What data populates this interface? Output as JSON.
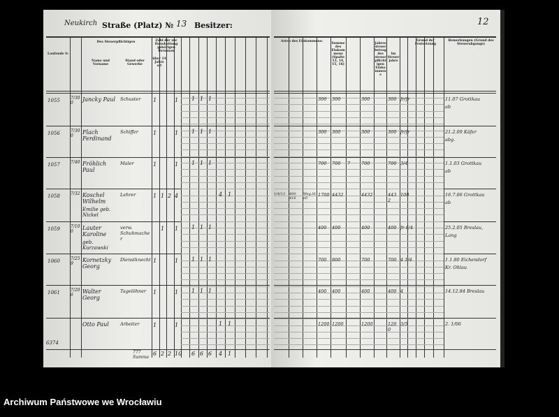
{
  "header": {
    "place": "Neukirch",
    "street_label": "Straße (Platz) №",
    "street_no": "13",
    "owner_label": "Besitzer:",
    "page_number": "12"
  },
  "columns_left": {
    "group_taxpayer": "Des Steuerpflichtigen",
    "name": "Name und Vorname",
    "stand": "Stand oder Gewerbe",
    "nr": "Laufende №",
    "household": "Zahl der zur Haushaltung gehörigen Personen",
    "over14": "über 14 Jahre alt"
  },
  "columns_right": {
    "income_types": "Arten des Einkommens:",
    "sum": "Summe des Einkommens (Spalte 13, 14, 15, 16)",
    "annual_tax": "Jahressteuerbetrag des steuerpflichtigen Einkommens",
    "tax_year": "Im Steuerjahre",
    "basis": "Grund der Festsetzung",
    "remarks": "Bemerkungen (Grund des Steuerabgangs)"
  },
  "rows": [
    {
      "nr": "1055",
      "ord": "7/300",
      "name": "Jancky Paul",
      "stand": "Schuster",
      "a": [
        "1",
        "",
        "",
        "1"
      ],
      "b": [
        "",
        "1",
        "1",
        "1"
      ],
      "c": [
        "",
        ""
      ],
      "r": [
        "",
        "",
        "",
        "300",
        "300",
        "",
        "300",
        "",
        "300",
        "fr/fr"
      ],
      "rem": [
        "11.07 Grottkau",
        "ab"
      ]
    },
    {
      "nr": "1056",
      "ord": "7/300",
      "name": "Flach Ferdinand",
      "stand": "Schiffer",
      "a": [
        "1",
        "",
        "",
        "1"
      ],
      "b": [
        "",
        "1",
        "1",
        "1"
      ],
      "c": [
        "",
        ""
      ],
      "r": [
        "",
        "",
        "",
        "300",
        "300",
        "",
        "300",
        "",
        "300",
        "fr/fr"
      ],
      "rem": [
        "21.2.09 Käfer",
        "abg."
      ]
    },
    {
      "nr": "1057",
      "ord": "7/40",
      "name": "Fröhlich Paul",
      "stand": "Maler",
      "a": [
        "1",
        "",
        "",
        "1"
      ],
      "b": [
        "",
        "1",
        "1",
        "1"
      ],
      "c": [
        "",
        ""
      ],
      "r": [
        "",
        "",
        "",
        "700",
        "700",
        "7",
        "700",
        "",
        "700",
        "3/4"
      ],
      "rem": [
        "1.1.03 Grottkau",
        "ab"
      ]
    },
    {
      "nr": "1058",
      "ord": "7/32",
      "name": "Koschel Wilhelm",
      "name2": "Emilie geb. Nickel",
      "stand": "Lehrer",
      "a": [
        "1",
        "1",
        "2",
        "4"
      ],
      "b": [
        "",
        "",
        "",
        ""
      ],
      "c": [
        "4",
        "1"
      ],
      "r": [
        "1/4/13",
        "400 416",
        "Weg.Stell",
        "1700",
        "4432",
        "",
        "4432",
        "",
        "4432",
        "100"
      ],
      "rem": [
        "16.7.06 Grottkau",
        "ab"
      ]
    },
    {
      "nr": "1059",
      "ord": "7/100",
      "name": "Lauter Karoline",
      "name2": "geb. Kurzawski",
      "stand": "verw. Schuhmacher",
      "a": [
        "",
        "1",
        "",
        "1"
      ],
      "b": [
        "",
        "1",
        "1",
        "1"
      ],
      "c": [
        "",
        ""
      ],
      "r": [
        "",
        "",
        "",
        "400",
        "400",
        "",
        "400",
        "",
        "400",
        "fr 8/4"
      ],
      "rem": [
        "25.2.05 Breslau,",
        "Lang"
      ]
    },
    {
      "nr": "1060",
      "ord": "7/259",
      "name": "Kornetzky Georg",
      "stand": "Dienstknecht",
      "a": [
        "1",
        "",
        "",
        "1"
      ],
      "b": [
        "",
        "1",
        "1",
        "1"
      ],
      "c": [
        "",
        ""
      ],
      "r": [
        "",
        "",
        "",
        "700",
        "800",
        "",
        "700",
        "",
        "700",
        "4 1/4"
      ],
      "rem": [
        "1.1.80 Eichendorf",
        "Kr. Ohlau"
      ]
    },
    {
      "nr": "1061",
      "ord": "7/206",
      "name": "Walter Georg",
      "stand": "Tagelöhner",
      "a": [
        "1",
        "",
        "",
        "1"
      ],
      "b": [
        "",
        "1",
        "1",
        "1"
      ],
      "c": [
        "",
        ""
      ],
      "r": [
        "",
        "",
        "",
        "400",
        "400",
        "",
        "400",
        "",
        "400",
        "4"
      ],
      "rem": [
        "14.12.84 Breslau",
        ""
      ]
    },
    {
      "nr": "",
      "ord": "",
      "name": "Otto Paul",
      "stand": "Arbeiter",
      "margin": "6374",
      "a": [
        "1",
        "",
        "",
        "1"
      ],
      "b": [
        "",
        "",
        "",
        ""
      ],
      "c": [
        "1",
        "1"
      ],
      "r": [
        "",
        "",
        "",
        "1200",
        "1200",
        "",
        "1200",
        "",
        "1200",
        "3/5"
      ],
      "rem": [
        "2. 1/06",
        ""
      ]
    }
  ],
  "totals": {
    "label": "777 Summa",
    "a": [
      "6",
      "2",
      "2",
      "10"
    ],
    "b": [
      "",
      "6",
      "6",
      "6"
    ],
    "c": [
      "4",
      "1"
    ]
  },
  "footer": {
    "archive": "Archiwum Państwowe we Wrocławiu"
  }
}
